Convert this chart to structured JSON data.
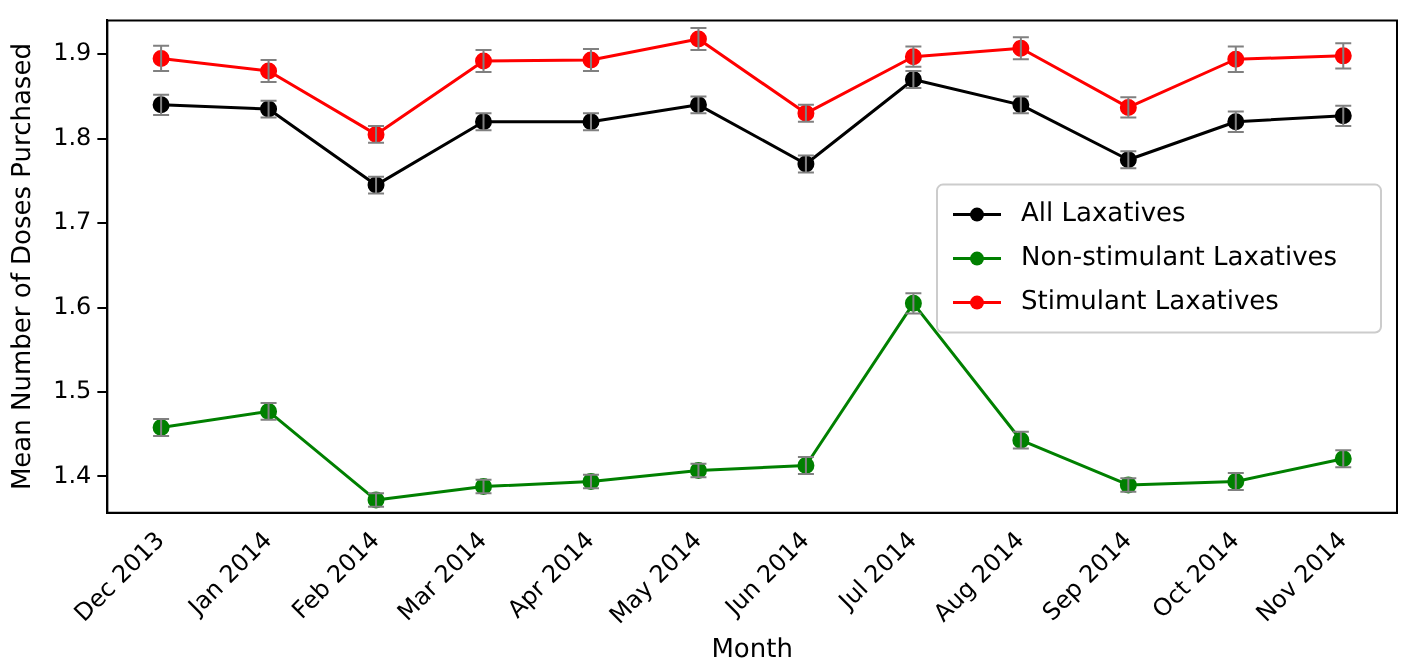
{
  "chart_data": {
    "type": "line",
    "xlabel": "Month",
    "ylabel": "Mean Number of Doses Purchased",
    "categories": [
      "Dec 2013",
      "Jan 2014",
      "Feb 2014",
      "Mar 2014",
      "Apr 2014",
      "May 2014",
      "Jun 2014",
      "Jul 2014",
      "Aug 2014",
      "Sep 2014",
      "Oct 2014",
      "Nov 2014"
    ],
    "series": [
      {
        "name": "All Laxatives",
        "color": "#000000",
        "values": [
          1.84,
          1.835,
          1.745,
          1.82,
          1.82,
          1.84,
          1.77,
          1.87,
          1.84,
          1.775,
          1.82,
          1.827
        ],
        "errors": [
          0.012,
          0.01,
          0.01,
          0.01,
          0.01,
          0.01,
          0.01,
          0.01,
          0.01,
          0.01,
          0.012,
          0.012
        ]
      },
      {
        "name": "Non-stimulant Laxatives",
        "color": "#008000",
        "values": [
          1.458,
          1.477,
          1.372,
          1.388,
          1.394,
          1.407,
          1.413,
          1.605,
          1.443,
          1.39,
          1.394,
          1.421
        ],
        "errors": [
          0.01,
          0.01,
          0.008,
          0.008,
          0.008,
          0.008,
          0.01,
          0.012,
          0.01,
          0.008,
          0.01,
          0.01
        ]
      },
      {
        "name": "Stimulant Laxatives",
        "color": "#ff0000",
        "values": [
          1.895,
          1.88,
          1.805,
          1.892,
          1.893,
          1.918,
          1.83,
          1.897,
          1.907,
          1.837,
          1.894,
          1.898
        ],
        "errors": [
          0.015,
          0.013,
          0.01,
          0.013,
          0.013,
          0.013,
          0.01,
          0.012,
          0.013,
          0.012,
          0.015,
          0.015
        ]
      }
    ],
    "ylim": [
      1.357,
      1.94
    ],
    "yticks": [
      1.4,
      1.5,
      1.6,
      1.7,
      1.8,
      1.9
    ],
    "grid": false,
    "legend": "right",
    "marker": "circle",
    "line_style": "solid"
  }
}
